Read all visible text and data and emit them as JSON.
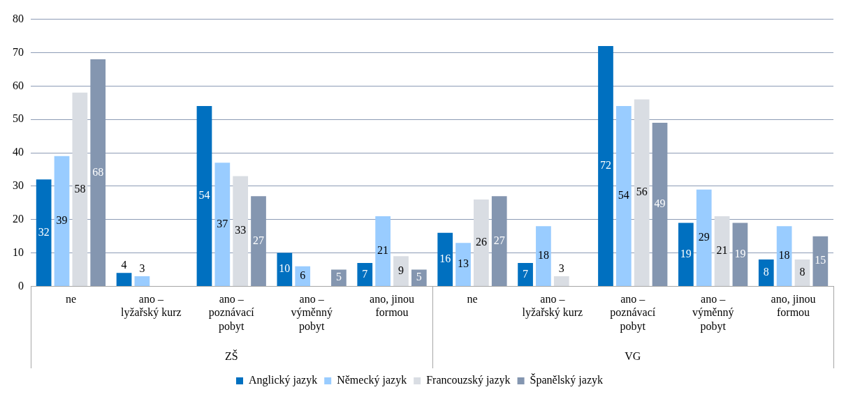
{
  "chart_data": {
    "type": "bar",
    "categories": [
      "ne",
      "ano – lyžařský kurz",
      "ano – poznávací pobyt",
      "ano – výměnný pobyt",
      "ano, jinou formou",
      "ne",
      "ano – lyžařský kurz",
      "ano – poznávací pobyt",
      "ano – výměnný pobyt",
      "ano, jinou formou"
    ],
    "series": [
      {
        "name": "Anglický jazyk",
        "color": "#0070c0",
        "values": [
          32,
          4,
          54,
          10,
          7,
          16,
          7,
          72,
          19,
          8
        ]
      },
      {
        "name": "Německý jazyk",
        "color": "#99ccff",
        "values": [
          39,
          3,
          37,
          6,
          21,
          13,
          18,
          54,
          29,
          18
        ]
      },
      {
        "name": "Francouzský jazyk",
        "color": "#d9dde3",
        "values": [
          58,
          null,
          33,
          null,
          9,
          26,
          3,
          56,
          21,
          8
        ]
      },
      {
        "name": "Španělský jazyk",
        "color": "#8496b0",
        "values": [
          68,
          null,
          27,
          5,
          5,
          27,
          null,
          49,
          19,
          15
        ]
      }
    ],
    "annotations": [
      "ZŠ",
      "VG"
    ],
    "ylim": [
      0,
      80
    ],
    "yticks": [
      0,
      10,
      20,
      30,
      40,
      50,
      60,
      70,
      80
    ],
    "grid": "y",
    "legend": "bottom",
    "data_labels": true
  }
}
